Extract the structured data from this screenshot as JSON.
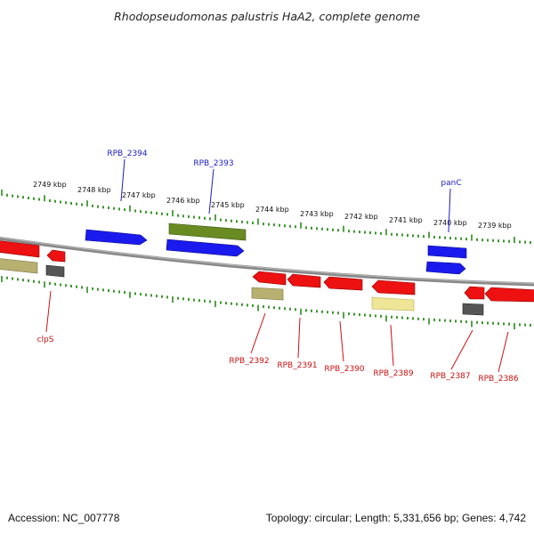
{
  "title": "Rhodopseudomonas palustris HaA2, complete genome",
  "footer": {
    "accession": "Accession: NC_007778",
    "summary": "Topology: circular; Length: 5,331,656 bp; Genes: 4,742"
  },
  "colors": {
    "backbone": "#888888",
    "tick": "#2a8a1a",
    "cds": "#ee1111",
    "cds_blue": "#1a1aee",
    "olive": "#6a8a22",
    "khaki": "#b8b070",
    "pale_yellow": "#eee596",
    "gray": "#555555",
    "label_top": "#1a1acc",
    "label_bottom": "#cc1111"
  },
  "scale_labels": [
    "2749 kbp",
    "2748 kbp",
    "2747 kbp",
    "2746 kbp",
    "2745 kbp",
    "2744 kbp",
    "2743 kbp",
    "2742 kbp",
    "2741 kbp",
    "2740 kbp",
    "2739 kbp"
  ],
  "top_gene_labels": [
    "RPB_2394",
    "RPB_2393",
    "panC"
  ],
  "bottom_gene_labels": [
    "clpS",
    "RPB_2392",
    "RPB_2391",
    "RPB_2390",
    "RPB_2389",
    "RPB_2387",
    "RPB_2386"
  ]
}
